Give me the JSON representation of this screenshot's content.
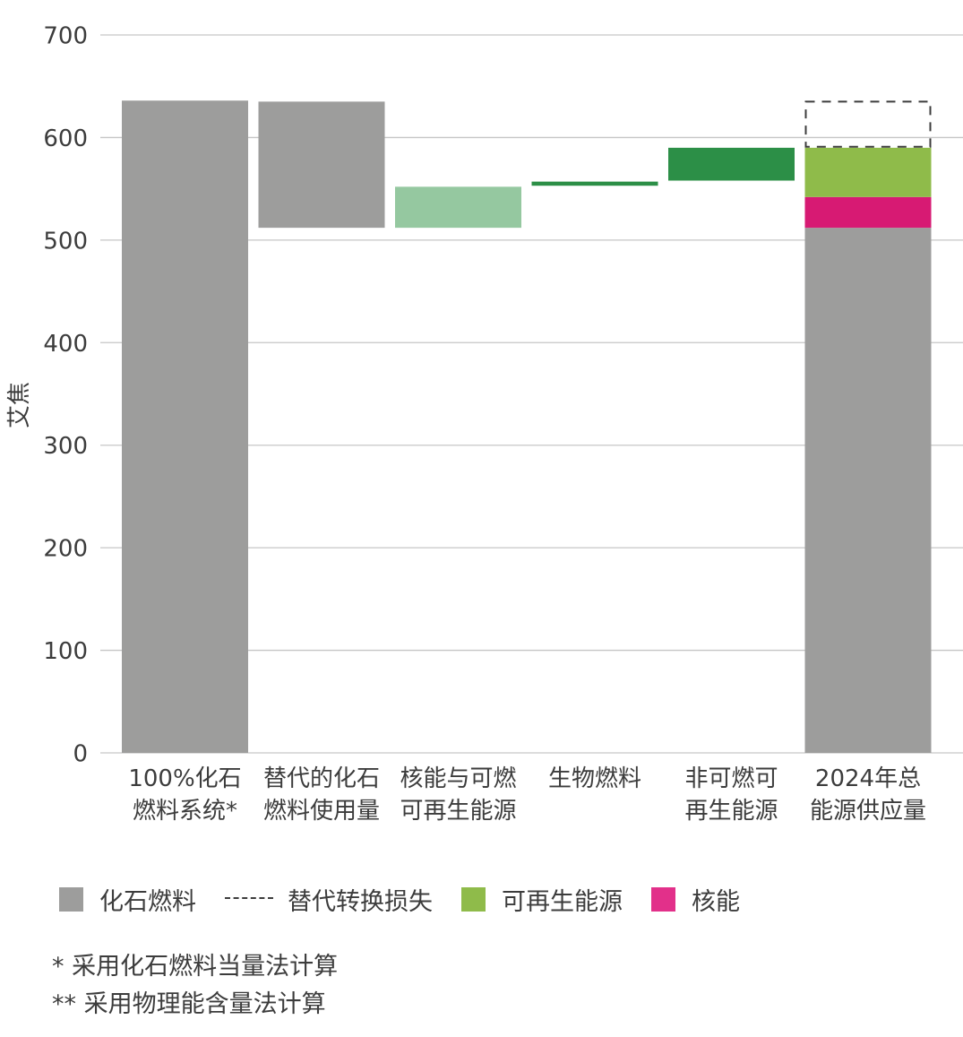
{
  "chart_data": {
    "type": "waterfall",
    "ylabel": "艾焦",
    "ylim": [
      0,
      700
    ],
    "yticks": [
      0,
      100,
      200,
      300,
      400,
      500,
      600,
      700
    ],
    "grid": true,
    "bars": [
      {
        "label": [
          "100%化石",
          "燃料系统*"
        ],
        "bottom": 0,
        "top": 636,
        "color": "#9d9d9c"
      },
      {
        "label": [
          "替代的化石",
          "燃料使用量"
        ],
        "bottom": 512,
        "top": 635,
        "color": "#9d9d9c"
      },
      {
        "label": [
          "核能与可燃",
          "可再生能源"
        ],
        "bottom": 512,
        "top": 552,
        "color": "#95c8a0"
      },
      {
        "label": [
          "生物燃料",
          ""
        ],
        "bottom": 553,
        "top": 557,
        "color": "#2c8f47"
      },
      {
        "label": [
          "非可燃可",
          "再生能源"
        ],
        "bottom": 558,
        "top": 590,
        "color": "#2c8f47"
      },
      {
        "label": [
          "2024年总",
          "能源供应量"
        ],
        "stack": [
          {
            "bottom": 0,
            "top": 512,
            "color": "#9d9d9c"
          },
          {
            "bottom": 512,
            "top": 542,
            "color": "#d71a73"
          },
          {
            "bottom": 542,
            "top": 590,
            "color": "#8fbb4a"
          }
        ],
        "dashed": {
          "bottom": 591,
          "top": 635
        }
      }
    ]
  },
  "legend": [
    {
      "label": "化石燃料",
      "color": "#9d9d9c",
      "kind": "swatch"
    },
    {
      "label": "替代转换损失",
      "kind": "dash"
    },
    {
      "label": "可再生能源",
      "color": "#8fbb4a",
      "kind": "swatch"
    },
    {
      "label": "核能",
      "color": "#e2308a",
      "kind": "swatch"
    }
  ],
  "footnotes": [
    "* 采用化石燃料当量法计算",
    "** 采用物理能含量法计算"
  ]
}
